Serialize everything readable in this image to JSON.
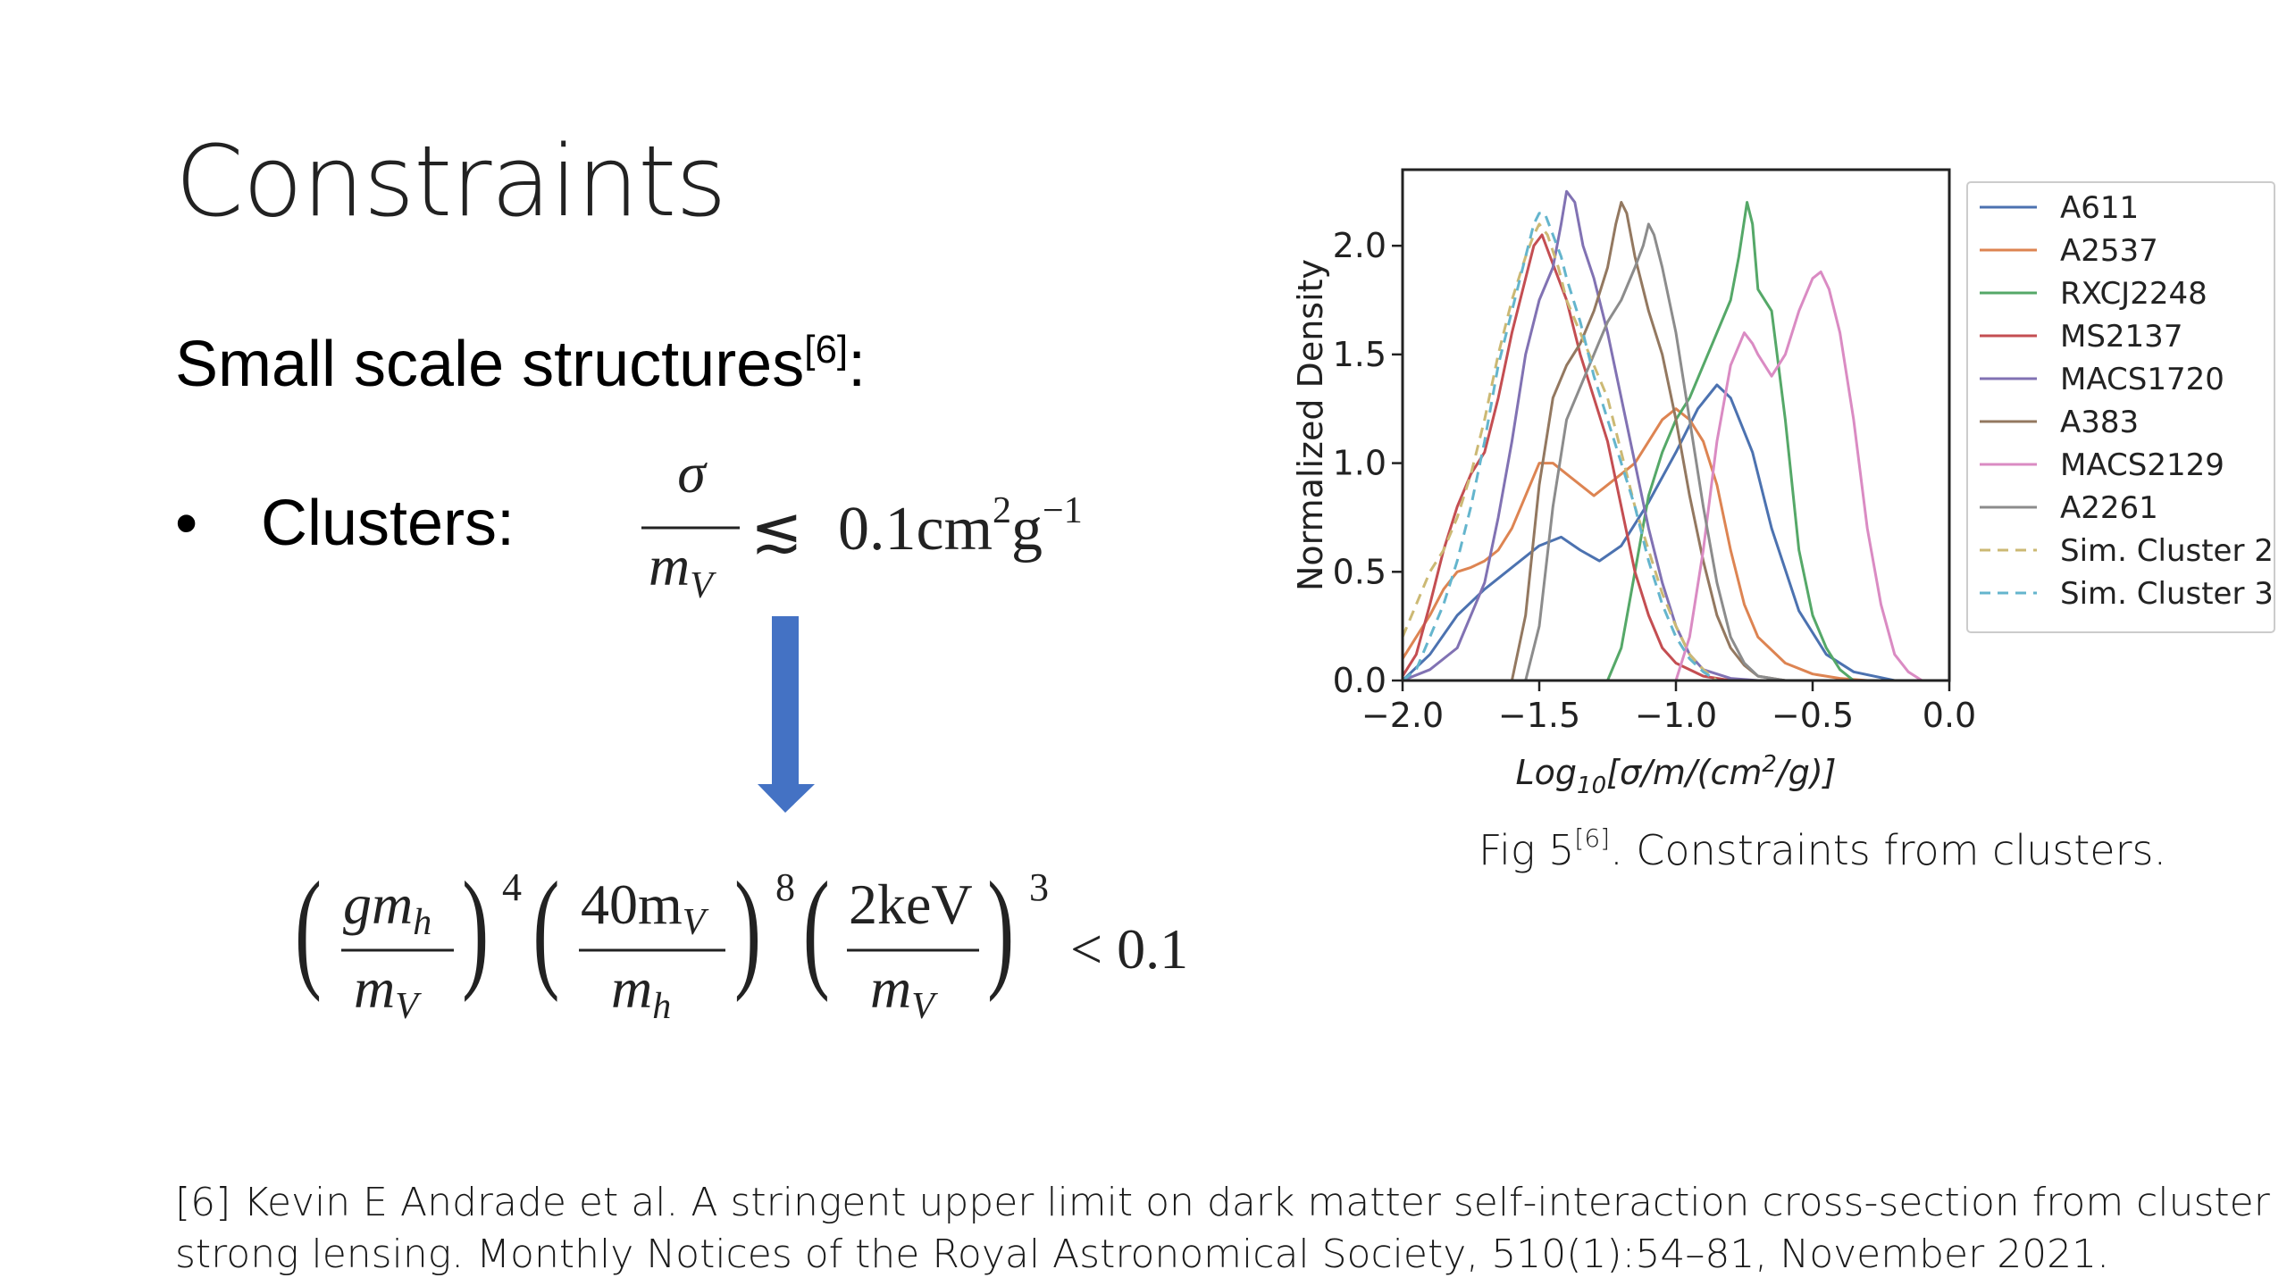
{
  "slide": {
    "title": "Constraints",
    "subtitle_text": "Small scale structures",
    "subtitle_ref": "[6]",
    "subtitle_colon": ":",
    "bullet_symbol": "•",
    "bullet_label": "Clusters:"
  },
  "equation1": {
    "numerator": "σ",
    "denominator_base": "m",
    "denominator_sub": "V",
    "relation": "≲",
    "value": "0.1cm",
    "exp1": "2",
    "unit2": "g",
    "exp2": "−1"
  },
  "equation2": {
    "f1_num": "gm",
    "f1_num_sub": "h",
    "f1_den": "m",
    "f1_den_sub": "V",
    "exp1": "4",
    "f2_num": "40m",
    "f2_num_sub": "V",
    "f2_den": "m",
    "f2_den_sub": "h",
    "exp2": "8",
    "f3_num": "2keV",
    "f3_den": "m",
    "f3_den_sub": "V",
    "exp3": "3",
    "relation": "< 0.1"
  },
  "arrow": {
    "color": "#4472c4"
  },
  "caption": {
    "prefix": "Fig 5",
    "ref": "[6]",
    "suffix": ". Constraints from clusters."
  },
  "reference": {
    "line1": "[6] Kevin E Andrade et al. A stringent upper limit on dark matter self-interaction cross-section from cluster",
    "line2": "strong lensing. Monthly Notices of the Royal Astronomical Society, 510(1):54–81, November 2021."
  },
  "chart_data": {
    "type": "line",
    "xlabel_main": "Log",
    "xlabel_sub": "10",
    "xlabel_rest_a": "[σ/m/(cm",
    "xlabel_sup": "2",
    "xlabel_rest_b": "/g)]",
    "ylabel": "Normalized Density",
    "xlim": [
      -2.0,
      0.0
    ],
    "ylim": [
      0.0,
      2.35
    ],
    "xticks": [
      -2.0,
      -1.5,
      -1.0,
      -0.5,
      0.0
    ],
    "xtick_labels": [
      "−2.0",
      "−1.5",
      "−1.0",
      "−0.5",
      "0.0"
    ],
    "yticks": [
      0.0,
      0.5,
      1.0,
      1.5,
      2.0
    ],
    "ytick_labels": [
      "0.0",
      "0.5",
      "1.0",
      "1.5",
      "2.0"
    ],
    "grid": false,
    "legend_position": "outside-right",
    "series": [
      {
        "name": "A611",
        "color": "#4c72b0",
        "dashed": false,
        "x": [
          -2.0,
          -1.9,
          -1.8,
          -1.7,
          -1.6,
          -1.5,
          -1.42,
          -1.35,
          -1.28,
          -1.2,
          -1.1,
          -1.0,
          -0.92,
          -0.85,
          -0.8,
          -0.72,
          -0.65,
          -0.55,
          -0.45,
          -0.35,
          -0.2
        ],
        "y": [
          0.0,
          0.12,
          0.3,
          0.42,
          0.52,
          0.62,
          0.66,
          0.6,
          0.55,
          0.62,
          0.82,
          1.05,
          1.25,
          1.36,
          1.3,
          1.05,
          0.7,
          0.32,
          0.12,
          0.04,
          0.0
        ]
      },
      {
        "name": "A2537",
        "color": "#dd8452",
        "dashed": false,
        "x": [
          -2.0,
          -1.95,
          -1.9,
          -1.85,
          -1.8,
          -1.75,
          -1.7,
          -1.65,
          -1.6,
          -1.55,
          -1.5,
          -1.45,
          -1.4,
          -1.35,
          -1.3,
          -1.25,
          -1.2,
          -1.15,
          -1.1,
          -1.05,
          -1.0,
          -0.95,
          -0.9,
          -0.85,
          -0.8,
          -0.75,
          -0.7,
          -0.6,
          -0.5,
          -0.4,
          -0.3
        ],
        "y": [
          0.1,
          0.2,
          0.3,
          0.42,
          0.5,
          0.52,
          0.55,
          0.6,
          0.7,
          0.85,
          1.0,
          1.0,
          0.95,
          0.9,
          0.85,
          0.9,
          0.95,
          1.0,
          1.1,
          1.2,
          1.25,
          1.2,
          1.1,
          0.9,
          0.6,
          0.35,
          0.2,
          0.08,
          0.03,
          0.01,
          0.0
        ]
      },
      {
        "name": "RXCJ2248",
        "color": "#55a868",
        "dashed": false,
        "x": [
          -1.25,
          -1.2,
          -1.15,
          -1.1,
          -1.05,
          -1.0,
          -0.95,
          -0.9,
          -0.85,
          -0.8,
          -0.77,
          -0.74,
          -0.72,
          -0.7,
          -0.65,
          -0.6,
          -0.55,
          -0.5,
          -0.45,
          -0.4,
          -0.35
        ],
        "y": [
          0.0,
          0.15,
          0.5,
          0.85,
          1.05,
          1.2,
          1.3,
          1.45,
          1.6,
          1.75,
          1.95,
          2.2,
          2.1,
          1.8,
          1.7,
          1.2,
          0.6,
          0.3,
          0.15,
          0.05,
          0.0
        ]
      },
      {
        "name": "MS2137",
        "color": "#c44e52",
        "dashed": false,
        "x": [
          -2.0,
          -1.95,
          -1.9,
          -1.85,
          -1.8,
          -1.75,
          -1.7,
          -1.65,
          -1.6,
          -1.55,
          -1.52,
          -1.49,
          -1.46,
          -1.43,
          -1.4,
          -1.35,
          -1.3,
          -1.25,
          -1.2,
          -1.15,
          -1.1,
          -1.05,
          -1.0,
          -0.9,
          -0.8
        ],
        "y": [
          0.02,
          0.12,
          0.35,
          0.6,
          0.8,
          0.95,
          1.05,
          1.3,
          1.6,
          1.85,
          2.0,
          2.05,
          1.95,
          1.85,
          1.75,
          1.5,
          1.3,
          1.1,
          0.8,
          0.5,
          0.3,
          0.15,
          0.08,
          0.02,
          0.0
        ]
      },
      {
        "name": "MACS1720",
        "color": "#8172b3",
        "dashed": false,
        "x": [
          -2.0,
          -1.9,
          -1.8,
          -1.7,
          -1.65,
          -1.6,
          -1.55,
          -1.5,
          -1.45,
          -1.42,
          -1.4,
          -1.37,
          -1.34,
          -1.3,
          -1.25,
          -1.2,
          -1.15,
          -1.1,
          -1.05,
          -1.0,
          -0.95,
          -0.9,
          -0.8,
          -0.7
        ],
        "y": [
          0.0,
          0.05,
          0.15,
          0.45,
          0.75,
          1.1,
          1.5,
          1.75,
          1.9,
          2.1,
          2.25,
          2.2,
          2.0,
          1.85,
          1.6,
          1.3,
          1.0,
          0.7,
          0.45,
          0.25,
          0.12,
          0.05,
          0.01,
          0.0
        ]
      },
      {
        "name": "A383",
        "color": "#937860",
        "dashed": false,
        "x": [
          -1.6,
          -1.55,
          -1.5,
          -1.45,
          -1.4,
          -1.35,
          -1.3,
          -1.25,
          -1.22,
          -1.2,
          -1.18,
          -1.15,
          -1.12,
          -1.1,
          -1.05,
          -1.0,
          -0.95,
          -0.9,
          -0.85,
          -0.8,
          -0.75,
          -0.7,
          -0.6
        ],
        "y": [
          0.0,
          0.3,
          0.9,
          1.3,
          1.45,
          1.55,
          1.7,
          1.9,
          2.1,
          2.2,
          2.15,
          1.95,
          1.8,
          1.7,
          1.5,
          1.2,
          0.85,
          0.55,
          0.3,
          0.15,
          0.07,
          0.02,
          0.0
        ]
      },
      {
        "name": "MACS2129",
        "color": "#da8bc3",
        "dashed": false,
        "x": [
          -1.0,
          -0.95,
          -0.9,
          -0.85,
          -0.8,
          -0.75,
          -0.72,
          -0.7,
          -0.65,
          -0.6,
          -0.55,
          -0.5,
          -0.47,
          -0.44,
          -0.4,
          -0.35,
          -0.3,
          -0.25,
          -0.2,
          -0.15,
          -0.1
        ],
        "y": [
          0.0,
          0.2,
          0.6,
          1.1,
          1.45,
          1.6,
          1.55,
          1.5,
          1.4,
          1.5,
          1.7,
          1.85,
          1.88,
          1.8,
          1.6,
          1.2,
          0.7,
          0.35,
          0.12,
          0.04,
          0.0
        ]
      },
      {
        "name": "A2261",
        "color": "#8c8c8c",
        "dashed": false,
        "x": [
          -1.55,
          -1.5,
          -1.45,
          -1.4,
          -1.35,
          -1.3,
          -1.25,
          -1.2,
          -1.15,
          -1.12,
          -1.1,
          -1.08,
          -1.05,
          -1.0,
          -0.95,
          -0.9,
          -0.85,
          -0.8,
          -0.75,
          -0.7,
          -0.6
        ],
        "y": [
          0.0,
          0.25,
          0.8,
          1.2,
          1.35,
          1.5,
          1.65,
          1.75,
          1.9,
          2.0,
          2.1,
          2.05,
          1.9,
          1.6,
          1.2,
          0.8,
          0.45,
          0.2,
          0.08,
          0.02,
          0.0
        ]
      },
      {
        "name": "Sim. Cluster 2",
        "color": "#ccb974",
        "dashed": true,
        "x": [
          -2.0,
          -1.95,
          -1.9,
          -1.85,
          -1.8,
          -1.75,
          -1.7,
          -1.65,
          -1.6,
          -1.55,
          -1.52,
          -1.5,
          -1.47,
          -1.43,
          -1.4,
          -1.35,
          -1.3,
          -1.25,
          -1.2,
          -1.15,
          -1.1,
          -1.05,
          -1.0,
          -0.95,
          -0.9,
          -0.85
        ],
        "y": [
          0.2,
          0.35,
          0.5,
          0.6,
          0.75,
          0.95,
          1.2,
          1.5,
          1.75,
          1.95,
          2.05,
          2.1,
          2.05,
          1.9,
          1.75,
          1.6,
          1.45,
          1.3,
          1.05,
          0.8,
          0.6,
          0.4,
          0.25,
          0.12,
          0.05,
          0.0
        ]
      },
      {
        "name": "Sim. Cluster 3",
        "color": "#64b5cd",
        "dashed": true,
        "x": [
          -2.0,
          -1.95,
          -1.9,
          -1.85,
          -1.8,
          -1.75,
          -1.7,
          -1.65,
          -1.6,
          -1.55,
          -1.52,
          -1.5,
          -1.48,
          -1.45,
          -1.42,
          -1.4,
          -1.35,
          -1.3,
          -1.25,
          -1.2,
          -1.15,
          -1.1,
          -1.05,
          -1.0,
          -0.95,
          -0.9,
          -0.85
        ],
        "y": [
          0.0,
          0.05,
          0.2,
          0.35,
          0.55,
          0.8,
          1.1,
          1.45,
          1.7,
          1.95,
          2.1,
          2.15,
          2.15,
          2.05,
          1.95,
          1.85,
          1.65,
          1.4,
          1.2,
          1.0,
          0.8,
          0.55,
          0.35,
          0.2,
          0.1,
          0.04,
          0.0
        ]
      }
    ]
  }
}
